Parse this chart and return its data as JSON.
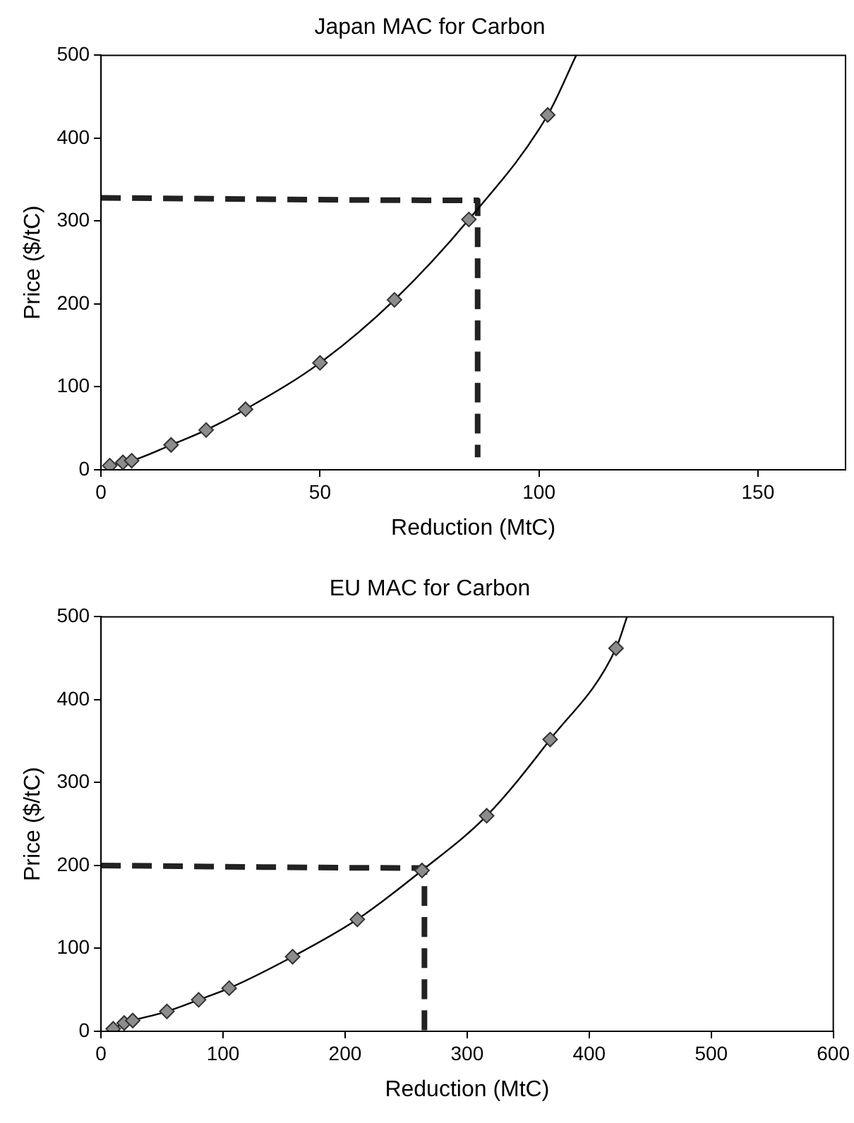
{
  "chart_data": [
    {
      "type": "scatter",
      "title": "Japan MAC for Carbon",
      "xlabel": "Reduction (MtC)",
      "ylabel": "Price ($/tC)",
      "xlim": [
        0,
        170
      ],
      "xticks": [
        0,
        50,
        100,
        150
      ],
      "ylim": [
        0,
        500
      ],
      "yticks": [
        0,
        100,
        200,
        300,
        400,
        500
      ],
      "grid": false,
      "legend": false,
      "series": [
        {
          "type": "scatter",
          "marker": "diamond",
          "color": "#8c8c8c",
          "x": [
            2,
            5,
            7,
            16,
            24,
            33,
            50,
            67,
            84,
            102
          ],
          "values": [
            5,
            9,
            11,
            30,
            48,
            73,
            129,
            205,
            302,
            428
          ]
        },
        {
          "type": "line",
          "marker": "none",
          "line_style": "solid",
          "color": "#000000",
          "x": [
            2,
            5,
            7,
            16,
            24,
            33,
            50,
            67,
            84,
            102,
            108.5
          ],
          "values": [
            5,
            9,
            11,
            30,
            48,
            73,
            129,
            205,
            302,
            428,
            500
          ]
        },
        {
          "type": "line",
          "marker": "none",
          "line_style": "dashed",
          "color": "#222222",
          "x": [
            0,
            86,
            86
          ],
          "values": [
            328,
            325,
            15
          ]
        }
      ]
    },
    {
      "type": "scatter",
      "title": "EU MAC for Carbon",
      "xlabel": "Reduction (MtC)",
      "ylabel": "Price ($/tC)",
      "xlim": [
        0,
        600
      ],
      "xticks": [
        0,
        100,
        200,
        300,
        400,
        500,
        600
      ],
      "ylim": [
        0,
        500
      ],
      "yticks": [
        0,
        100,
        200,
        300,
        400,
        500
      ],
      "grid": false,
      "legend": false,
      "series": [
        {
          "type": "scatter",
          "marker": "diamond",
          "color": "#8c8c8c",
          "x": [
            10,
            19,
            26,
            54,
            80,
            105,
            157,
            210,
            263,
            316,
            368,
            422
          ],
          "values": [
            3,
            10,
            13,
            24,
            38,
            52,
            90,
            135,
            194,
            260,
            352,
            462
          ]
        },
        {
          "type": "line",
          "marker": "none",
          "line_style": "solid",
          "color": "#000000",
          "x": [
            10,
            19,
            26,
            54,
            80,
            105,
            157,
            210,
            263,
            316,
            368,
            422,
            431
          ],
          "values": [
            3,
            10,
            13,
            24,
            38,
            52,
            90,
            135,
            194,
            260,
            352,
            462,
            500
          ]
        },
        {
          "type": "line",
          "marker": "none",
          "line_style": "dashed",
          "color": "#222222",
          "x": [
            0,
            265,
            265
          ],
          "values": [
            200,
            197,
            0
          ]
        }
      ]
    }
  ]
}
